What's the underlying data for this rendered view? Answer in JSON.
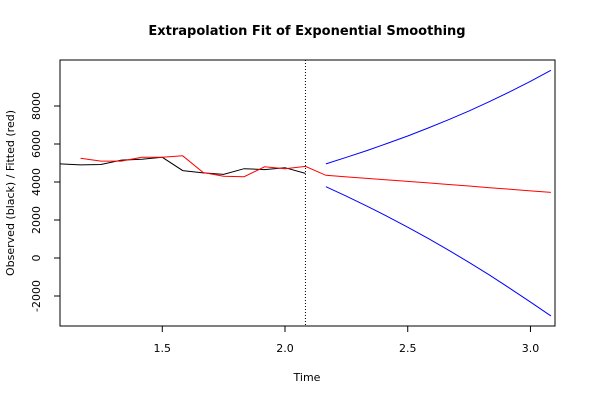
{
  "chart_data": {
    "type": "line",
    "title": "Extrapolation Fit of Exponential Smoothing",
    "xlabel": "Time",
    "ylabel": "Observed (black) / Fitted (red)",
    "xlim": [
      1.0833,
      3.1
    ],
    "ylim": [
      -3579,
      10421
    ],
    "xticks": [
      1.5,
      {
        "value": 2.0,
        "label": "2.0"
      },
      2.5,
      {
        "value": 3.0,
        "label": "3.0"
      }
    ],
    "yticks": [
      -2000,
      0,
      2000,
      4000,
      6000,
      8000
    ],
    "vline": 2.0833,
    "series": [
      {
        "name": "Observed",
        "color": "#000000",
        "x": [
          1.0833,
          1.1667,
          1.25,
          1.3333,
          1.4167,
          1.5,
          1.5833,
          1.6667,
          1.75,
          1.8333,
          1.9167,
          2.0,
          2.0833
        ],
        "values": [
          4950,
          4900,
          4920,
          5150,
          5200,
          5300,
          4600,
          4480,
          4400,
          4700,
          4650,
          4750,
          4450
        ]
      },
      {
        "name": "Fitted",
        "color": "#ff0000",
        "x": [
          1.1667,
          1.25,
          1.3333,
          1.4167,
          1.5,
          1.5833,
          1.6667,
          1.75,
          1.8333,
          1.9167,
          2.0,
          2.0833,
          2.1667,
          2.25,
          2.3333,
          2.4167,
          2.5,
          2.5833,
          2.6667,
          2.75,
          2.8333,
          2.9167,
          3.0,
          3.0833
        ],
        "values": [
          5250,
          5100,
          5100,
          5300,
          5300,
          5380,
          4500,
          4300,
          4280,
          4800,
          4700,
          4820,
          4350,
          4270,
          4190,
          4110,
          4030,
          3950,
          3870,
          3790,
          3700,
          3620,
          3530,
          3450
        ]
      },
      {
        "name": "Upper",
        "color": "#0000ff",
        "x": [
          2.1667,
          2.25,
          2.3333,
          2.4167,
          2.5,
          2.5833,
          2.6667,
          2.75,
          2.8333,
          2.9167,
          3.0,
          3.0833
        ],
        "values": [
          4950,
          5300,
          5650,
          6030,
          6420,
          6840,
          7280,
          7740,
          8230,
          8750,
          9300,
          9880
        ]
      },
      {
        "name": "Lower",
        "color": "#0000ff",
        "x": [
          2.1667,
          2.25,
          2.3333,
          2.4167,
          2.5,
          2.5833,
          2.6667,
          2.75,
          2.8333,
          2.9167,
          3.0,
          3.0833
        ],
        "values": [
          3750,
          3250,
          2730,
          2190,
          1620,
          1030,
          410,
          -230,
          -900,
          -1600,
          -2320,
          -3050
        ]
      }
    ]
  }
}
